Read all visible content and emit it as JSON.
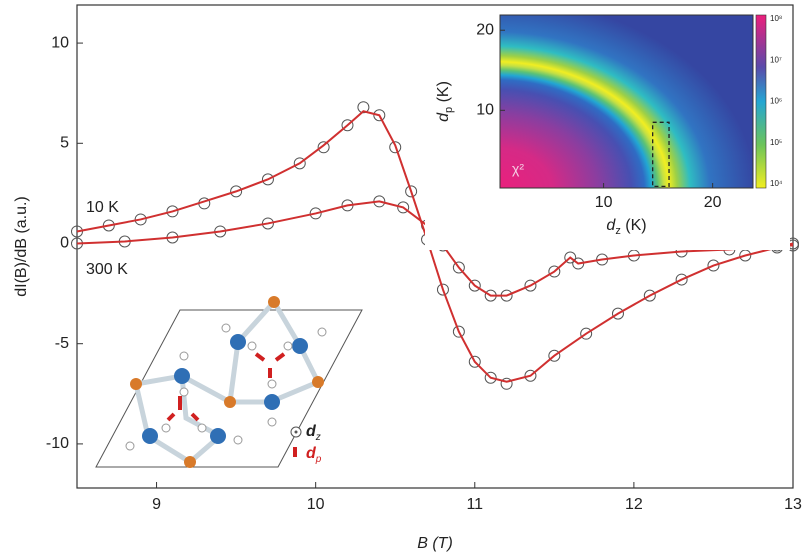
{
  "chart_data": [
    {
      "type": "line",
      "xlabel": "B (T)",
      "ylabel": "dI(B)/dB (a.u.)",
      "xlim": [
        8.5,
        13
      ],
      "ylim": [
        -12.2,
        11.9
      ],
      "xticks": [
        9,
        10,
        11,
        12,
        13
      ],
      "yticks": [
        -10,
        -5,
        0,
        5,
        10
      ],
      "annotations": [
        "10 K",
        "300 K"
      ],
      "series": [
        {
          "marker": "circle",
          "color": "#555555",
          "x": [
            8.5,
            8.7,
            8.9,
            9.1,
            9.3,
            9.5,
            9.7,
            9.9,
            10.05,
            10.2,
            10.3,
            10.4,
            10.5,
            10.6,
            10.7,
            10.8,
            10.9,
            11.0,
            11.1,
            11.2,
            11.35,
            11.5,
            11.7,
            11.9,
            12.1,
            12.3,
            12.5,
            12.7,
            12.9,
            13.0
          ],
          "values": [
            0.6,
            0.9,
            1.2,
            1.6,
            2.0,
            2.6,
            3.2,
            4.0,
            4.8,
            5.9,
            6.8,
            6.4,
            4.8,
            2.6,
            0.2,
            -2.3,
            -4.4,
            -5.9,
            -6.7,
            -7.0,
            -6.6,
            -5.6,
            -4.5,
            -3.5,
            -2.6,
            -1.8,
            -1.1,
            -0.6,
            -0.2,
            0.0
          ]
        },
        {
          "marker": "circle",
          "color": "#555555",
          "x": [
            8.5,
            8.8,
            9.1,
            9.4,
            9.7,
            10.0,
            10.2,
            10.4,
            10.55,
            10.7,
            10.8,
            10.9,
            11.0,
            11.1,
            11.2,
            11.35,
            11.5,
            11.6,
            11.65,
            11.8,
            12.0,
            12.3,
            12.6,
            12.9,
            13.0
          ],
          "values": [
            0.0,
            0.1,
            0.3,
            0.6,
            1.0,
            1.5,
            1.9,
            2.1,
            1.8,
            0.9,
            -0.1,
            -1.2,
            -2.1,
            -2.6,
            -2.6,
            -2.1,
            -1.4,
            -0.7,
            -1.0,
            -0.8,
            -0.6,
            -0.4,
            -0.3,
            -0.1,
            -0.1
          ]
        },
        {
          "marker": "none",
          "color": "#d03030",
          "x": [
            8.5,
            8.7,
            8.9,
            9.1,
            9.3,
            9.5,
            9.7,
            9.9,
            10.05,
            10.2,
            10.3,
            10.4,
            10.5,
            10.6,
            10.7,
            10.8,
            10.9,
            11.0,
            11.1,
            11.2,
            11.35,
            11.5,
            11.7,
            11.9,
            12.1,
            12.3,
            12.5,
            12.7,
            12.9,
            13.0
          ],
          "values": [
            0.6,
            0.9,
            1.2,
            1.6,
            2.1,
            2.6,
            3.2,
            4.0,
            4.9,
            5.9,
            6.6,
            6.4,
            4.9,
            2.6,
            0.2,
            -2.3,
            -4.4,
            -5.9,
            -6.7,
            -6.9,
            -6.6,
            -5.6,
            -4.5,
            -3.5,
            -2.6,
            -1.8,
            -1.1,
            -0.6,
            -0.2,
            0.0
          ]
        },
        {
          "marker": "none",
          "color": "#d03030",
          "x": [
            8.5,
            8.8,
            9.1,
            9.4,
            9.7,
            10.0,
            10.2,
            10.4,
            10.55,
            10.7,
            10.8,
            10.9,
            11.0,
            11.1,
            11.2,
            11.35,
            11.5,
            11.6,
            11.65,
            11.8,
            12.0,
            12.3,
            12.6,
            12.9,
            13.0
          ],
          "values": [
            0.0,
            0.1,
            0.3,
            0.6,
            1.0,
            1.5,
            1.9,
            2.1,
            1.8,
            0.9,
            -0.1,
            -1.2,
            -2.1,
            -2.6,
            -2.6,
            -2.1,
            -1.4,
            -0.7,
            -1.0,
            -0.8,
            -0.6,
            -0.4,
            -0.3,
            -0.1,
            -0.1
          ]
        }
      ],
      "diagram_legend": [
        {
          "symbol": "d",
          "sub": "z"
        },
        {
          "symbol": "d",
          "sub": "p"
        }
      ]
    },
    {
      "type": "heatmap",
      "xlabel": {
        "symbol": "d",
        "sub": "z",
        "unit": " (K)"
      },
      "ylabel": {
        "symbol": "d",
        "sub": "p",
        "unit": " (K)"
      },
      "xlim": [
        0.5,
        23.7
      ],
      "ylim": [
        0.3,
        21.9
      ],
      "xticks": [
        10,
        20
      ],
      "yticks": [
        10,
        20
      ],
      "annotation": "χ²",
      "colorbar_labels": [
        "10⁸",
        "10⁷",
        "10⁶",
        "10⁵",
        "10⁴"
      ]
    }
  ]
}
